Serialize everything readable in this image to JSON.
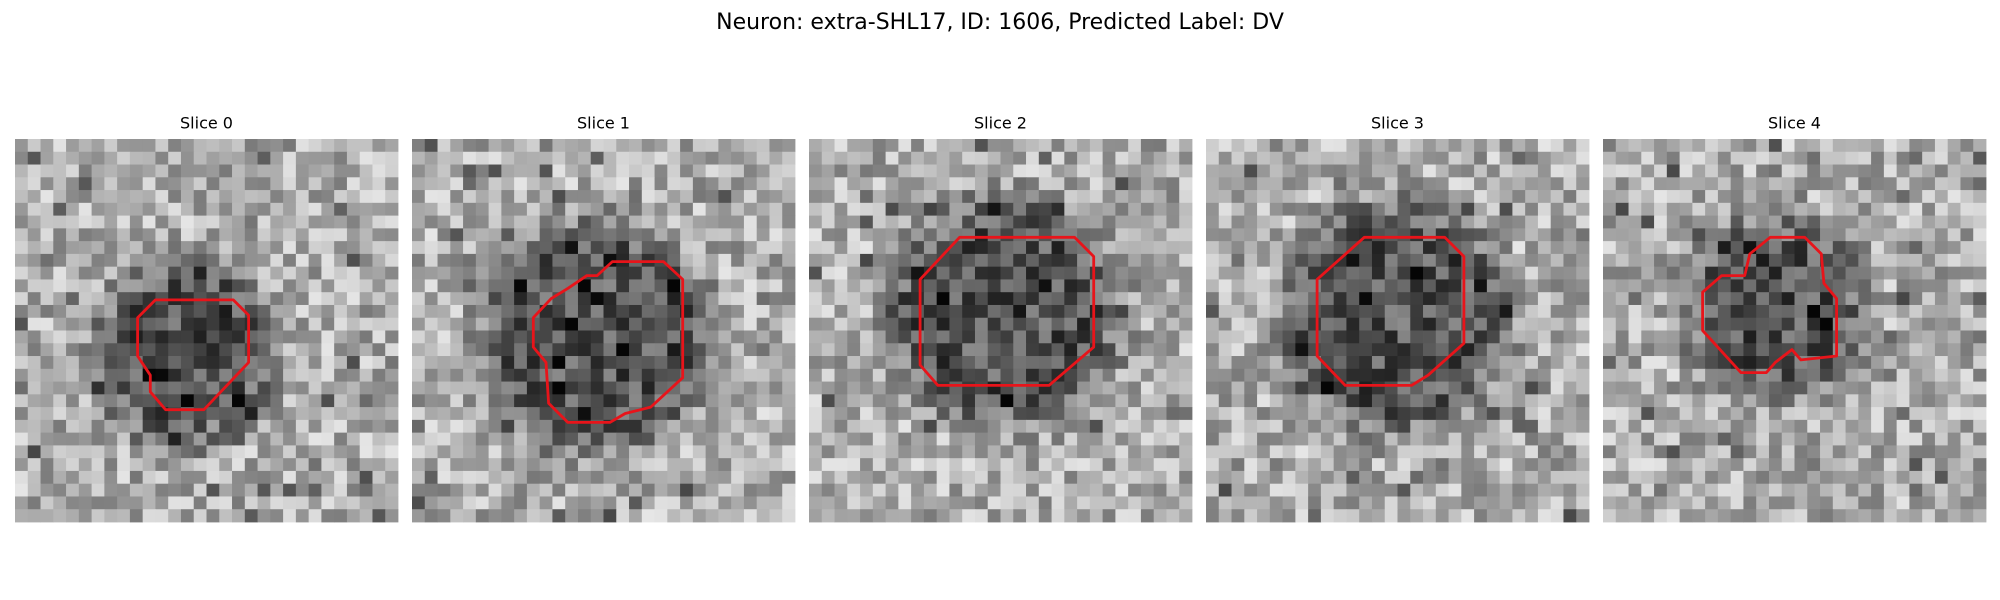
{
  "title": "Neuron: extra-SHL17, ID: 1606, Predicted Label: DV",
  "panels": [
    {
      "title": "Slice 0"
    },
    {
      "title": "Slice 1"
    },
    {
      "title": "Slice 2"
    },
    {
      "title": "Slice 3"
    },
    {
      "title": "Slice 4"
    }
  ]
}
